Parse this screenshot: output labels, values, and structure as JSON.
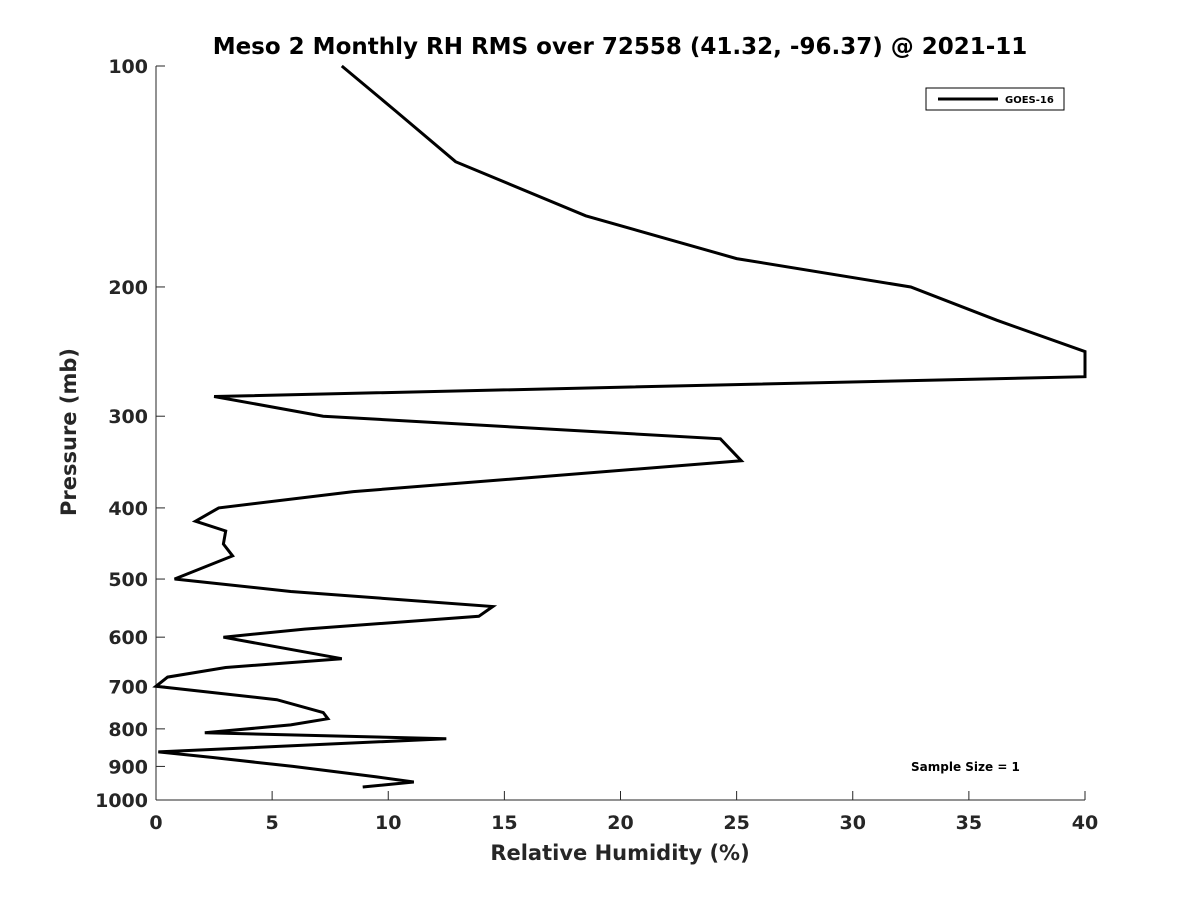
{
  "chart_data": {
    "type": "line",
    "title": "Meso 2 Monthly RH RMS over 72558 (41.32, -96.37) @ 2021-11",
    "xlabel": "Relative Humidity (%)",
    "ylabel": "Pressure (mb)",
    "xlim": [
      0,
      40
    ],
    "ylim": [
      100,
      1000
    ],
    "y_scale": "log",
    "y_reversed": true,
    "x_ticks": [
      0,
      5,
      10,
      15,
      20,
      25,
      30,
      35,
      40
    ],
    "y_ticks": [
      100,
      200,
      300,
      400,
      500,
      600,
      700,
      800,
      900,
      1000
    ],
    "grid": false,
    "legend_position": "top-right",
    "series": [
      {
        "name": "GOES-16",
        "color": "#000000",
        "x": [
          8.0,
          10.3,
          12.9,
          18.5,
          25.0,
          32.5,
          36.2,
          40.0,
          40.0,
          2.5,
          7.2,
          24.3,
          25.2,
          8.5,
          2.7,
          1.7,
          3.0,
          2.9,
          3.3,
          0.8,
          5.8,
          14.5,
          13.9,
          6.4,
          2.9,
          8.0,
          3.0,
          0.5,
          0.0,
          5.2,
          7.2,
          7.4,
          5.8,
          2.1,
          12.5,
          0.1,
          2.4,
          5.9,
          9.5,
          11.1,
          8.9
        ],
        "y": [
          100,
          115,
          135,
          160,
          183,
          200,
          222,
          245,
          265,
          282,
          300,
          322,
          345,
          380,
          400,
          417,
          430,
          448,
          465,
          500,
          520,
          545,
          562,
          585,
          600,
          642,
          660,
          680,
          700,
          730,
          760,
          775,
          790,
          810,
          825,
          860,
          875,
          900,
          930,
          945,
          960
        ]
      }
    ],
    "annotation": "Sample Size = 1"
  }
}
